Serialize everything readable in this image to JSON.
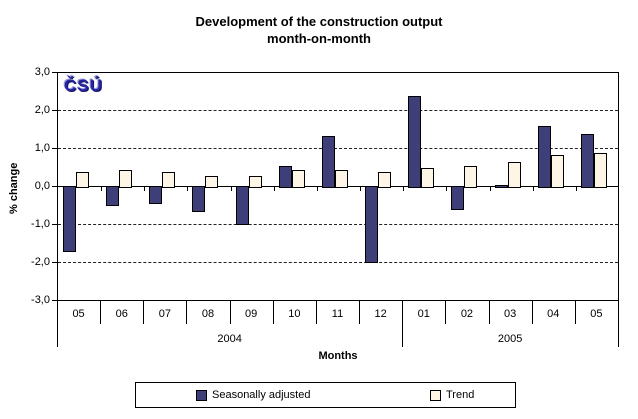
{
  "title": {
    "line1": "Development of the construction output",
    "line2": "month-on-month"
  },
  "logo": {
    "text": "ČSÚ"
  },
  "y_axis": {
    "label": "% change",
    "tick_labels": [
      "3,0",
      "2,0",
      "1,0",
      "0,0",
      "-1,0",
      "-2,0",
      "-3,0"
    ],
    "tick_values": [
      3,
      2,
      1,
      0,
      -1,
      -2,
      -3
    ]
  },
  "x_axis": {
    "label": "Months"
  },
  "legend": {
    "items": [
      {
        "label": "Seasonally adjusted",
        "color": "#3e3e78"
      },
      {
        "label": "Trend",
        "color": "#fdf6e7"
      }
    ]
  },
  "chart_data": {
    "type": "bar",
    "title": "Development of the construction output month-on-month",
    "xlabel": "Months",
    "ylabel": "% change",
    "ylim": [
      -3.0,
      3.0
    ],
    "ytick_step": 1.0,
    "grid": "horizontal-dashed",
    "legend_position": "bottom",
    "categories": [
      "05",
      "06",
      "07",
      "08",
      "09",
      "10",
      "11",
      "12",
      "01",
      "02",
      "03",
      "04",
      "05"
    ],
    "category_groups": [
      {
        "label": "2004",
        "count": 8
      },
      {
        "label": "2005",
        "count": 5
      }
    ],
    "series": [
      {
        "name": "Seasonally adjusted",
        "color": "#3e3e78",
        "values": [
          -1.7,
          -0.5,
          -0.45,
          -0.65,
          -1.0,
          0.55,
          1.35,
          -2.0,
          2.4,
          -0.6,
          0.05,
          1.6,
          1.4
        ]
      },
      {
        "name": "Trend",
        "color": "#fdf6e7",
        "values": [
          0.4,
          0.45,
          0.4,
          0.3,
          0.3,
          0.45,
          0.45,
          0.4,
          0.5,
          0.55,
          0.65,
          0.85,
          0.9
        ]
      }
    ]
  }
}
